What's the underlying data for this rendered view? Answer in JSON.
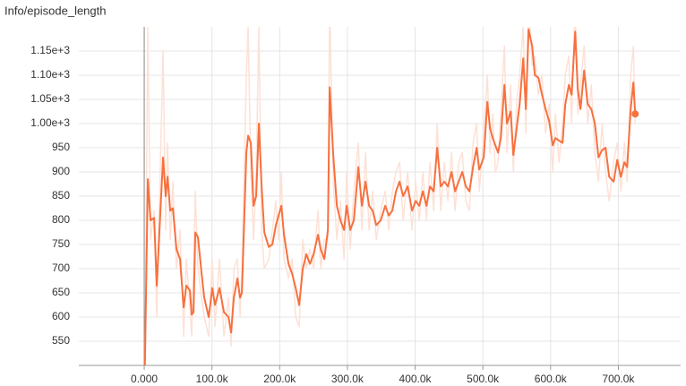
{
  "chart_data": {
    "type": "line",
    "title": "Info/episode_length",
    "x": [
      1000,
      5300,
      9300,
      14600,
      18500,
      27800,
      31700,
      34400,
      38400,
      42300,
      47600,
      52900,
      58200,
      62200,
      67500,
      70100,
      72800,
      75400,
      79400,
      84700,
      88600,
      95200,
      100500,
      104500,
      111100,
      117700,
      124300,
      128300,
      132300,
      137600,
      141500,
      144200,
      150800,
      153400,
      157400,
      161400,
      165300,
      169300,
      173300,
      177300,
      183900,
      189200,
      194400,
      198400,
      202400,
      206400,
      213000,
      218300,
      223600,
      228800,
      234100,
      239400,
      244700,
      250000,
      256600,
      260600,
      265900,
      271200,
      273800,
      279100,
      284400,
      289700,
      295000,
      298900,
      304200,
      309500,
      316100,
      321400,
      326700,
      332000,
      337300,
      342600,
      349200,
      355800,
      361100,
      366400,
      371700,
      377000,
      382300,
      388900,
      395500,
      400800,
      406100,
      411400,
      416700,
      422000,
      427300,
      432600,
      437800,
      443100,
      448400,
      453700,
      459000,
      464300,
      469600,
      474900,
      480200,
      485500,
      490800,
      494700,
      501300,
      506600,
      510600,
      514600,
      518500,
      522500,
      526500,
      531800,
      535700,
      541000,
      545000,
      550300,
      554300,
      559600,
      563500,
      567500,
      572800,
      576800,
      582000,
      587300,
      592600,
      597900,
      603200,
      607200,
      612500,
      617700,
      621700,
      627000,
      631000,
      636300,
      640200,
      644200,
      649500,
      654800,
      660100,
      665400,
      670700,
      676000,
      681200,
      686500,
      693100,
      698400,
      703700,
      709000,
      713000,
      718300,
      722200,
      724900
    ],
    "series": [
      {
        "color": "#fde1d6",
        "values": [
          500,
          1200,
          760,
          820,
          600,
          1150,
          780,
          960,
          760,
          880,
          700,
          780,
          560,
          720,
          620,
          560,
          700,
          860,
          700,
          640,
          600,
          560,
          720,
          580,
          720,
          560,
          640,
          540,
          700,
          720,
          600,
          700,
          1100,
          1200,
          900,
          760,
          900,
          1200,
          780,
          700,
          720,
          780,
          840,
          760,
          900,
          720,
          680,
          720,
          600,
          580,
          760,
          700,
          740,
          700,
          820,
          700,
          760,
          760,
          1250,
          880,
          760,
          840,
          720,
          900,
          740,
          860,
          960,
          780,
          940,
          780,
          860,
          760,
          820,
          860,
          780,
          860,
          900,
          920,
          800,
          900,
          780,
          880,
          800,
          900,
          800,
          920,
          820,
          1000,
          820,
          920,
          840,
          940,
          820,
          920,
          940,
          840,
          820,
          960,
          1000,
          860,
          980,
          1100,
          940,
          1020,
          900,
          920,
          1020,
          1160,
          940,
          1080,
          900,
          1050,
          1100,
          1200,
          980,
          1250,
          1120,
          1140,
          1060,
          1100,
          980,
          1040,
          900,
          1020,
          920,
          1000,
          1100,
          1140,
          1000,
          1250,
          1020,
          1080,
          1160,
          1000,
          1080,
          940,
          880,
          1000,
          900,
          840,
          920,
          960,
          860,
          960,
          880,
          1100,
          1160,
          1000
        ]
      },
      {
        "color": "#f7703e",
        "values": [
          500,
          885,
          800,
          805,
          665,
          930,
          850,
          890,
          820,
          825,
          740,
          720,
          620,
          665,
          655,
          605,
          610,
          775,
          765,
          690,
          640,
          600,
          660,
          625,
          660,
          610,
          600,
          568,
          640,
          680,
          640,
          650,
          940,
          975,
          960,
          830,
          850,
          1000,
          870,
          775,
          745,
          750,
          790,
          810,
          830,
          770,
          710,
          690,
          660,
          625,
          700,
          730,
          710,
          730,
          770,
          740,
          720,
          780,
          1075,
          935,
          830,
          800,
          780,
          830,
          780,
          800,
          910,
          830,
          880,
          830,
          820,
          790,
          800,
          830,
          810,
          820,
          860,
          880,
          850,
          870,
          820,
          840,
          830,
          860,
          830,
          870,
          860,
          950,
          870,
          880,
          870,
          900,
          860,
          880,
          900,
          870,
          860,
          910,
          950,
          905,
          930,
          1045,
          990,
          970,
          955,
          940,
          970,
          1080,
          1000,
          1025,
          935,
          995,
          1040,
          1135,
          1030,
          1195,
          1160,
          1100,
          1095,
          1060,
          1030,
          1005,
          955,
          970,
          965,
          960,
          1040,
          1080,
          1060,
          1190,
          1070,
          1030,
          1110,
          1040,
          1030,
          1000,
          930,
          945,
          950,
          890,
          880,
          925,
          890,
          920,
          910,
          1030,
          1085,
          1020
        ]
      }
    ],
    "xlim": [
      -96600,
      792000
    ],
    "xticks": [
      {
        "value": 0,
        "label": "0.000"
      },
      {
        "value": 100000,
        "label": "100.0k"
      },
      {
        "value": 200000,
        "label": "200.0k"
      },
      {
        "value": 300000,
        "label": "300.0k"
      },
      {
        "value": 400000,
        "label": "400.0k"
      },
      {
        "value": 500000,
        "label": "500.0k"
      },
      {
        "value": 600000,
        "label": "600.0k"
      },
      {
        "value": 700000,
        "label": "700.0k"
      }
    ],
    "ylim": [
      500,
      1200
    ],
    "yticks": [
      550,
      600,
      650,
      700,
      750,
      800,
      850,
      900,
      950,
      {
        "value": 1000,
        "label": "1.00e+3"
      },
      {
        "value": 1050,
        "label": "1.05e+3"
      },
      {
        "value": 1100,
        "label": "1.10e+3"
      },
      {
        "value": 1150,
        "label": "1.15e+3"
      }
    ],
    "grid": true
  }
}
